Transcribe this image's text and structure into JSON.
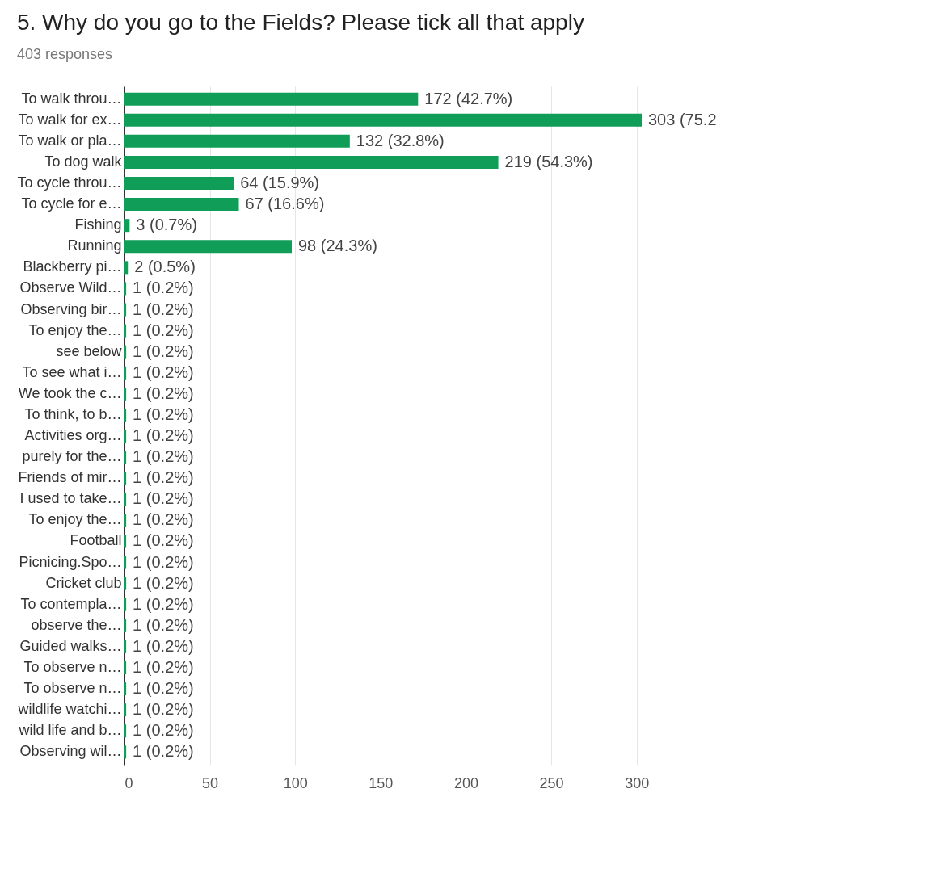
{
  "chart_data": {
    "type": "bar",
    "orientation": "horizontal",
    "title": "5. Why do you go to the Fields? Please tick all that apply",
    "subtitle": "403 responses",
    "categories": [
      "To walk throu…",
      "To walk for ex…",
      "To walk or pla…",
      "To dog walk",
      "To cycle throu…",
      "To cycle for e…",
      "Fishing",
      "Running",
      "Blackberry pi…",
      "Observe Wild…",
      "Observing bir…",
      "To enjoy the…",
      "see below",
      "To see what i…",
      "We took the c…",
      "To think, to b…",
      "Activities org…",
      "purely for the…",
      "Friends of mir…",
      "I used to take…",
      "To enjoy the…",
      "Football",
      "Picnicing.Spo…",
      "Cricket club",
      "To contempla…",
      "observe the…",
      "Guided walks…",
      "To observe n…",
      "To observe n…",
      "wildlife watchi…",
      "wild life and b…",
      "Observing wil…"
    ],
    "values": [
      172,
      303,
      132,
      219,
      64,
      67,
      3,
      98,
      2,
      1,
      1,
      1,
      1,
      1,
      1,
      1,
      1,
      1,
      1,
      1,
      1,
      1,
      1,
      1,
      1,
      1,
      1,
      1,
      1,
      1,
      1,
      1
    ],
    "value_labels": [
      "172 (42.7%)",
      "303 (75.2",
      "132 (32.8%)",
      "219 (54.3%)",
      "64 (15.9%)",
      "67 (16.6%)",
      "3 (0.7%)",
      "98 (24.3%)",
      "2 (0.5%)",
      "1 (0.2%)",
      "1 (0.2%)",
      "1 (0.2%)",
      "1 (0.2%)",
      "1 (0.2%)",
      "1 (0.2%)",
      "1 (0.2%)",
      "1 (0.2%)",
      "1 (0.2%)",
      "1 (0.2%)",
      "1 (0.2%)",
      "1 (0.2%)",
      "1 (0.2%)",
      "1 (0.2%)",
      "1 (0.2%)",
      "1 (0.2%)",
      "1 (0.2%)",
      "1 (0.2%)",
      "1 (0.2%)",
      "1 (0.2%)",
      "1 (0.2%)",
      "1 (0.2%)",
      "1 (0.2%)"
    ],
    "color": "#0f9d58",
    "xlim": [
      0,
      303
    ],
    "xticks": [
      0,
      50,
      100,
      150,
      200,
      250,
      300
    ],
    "grid": "x"
  }
}
